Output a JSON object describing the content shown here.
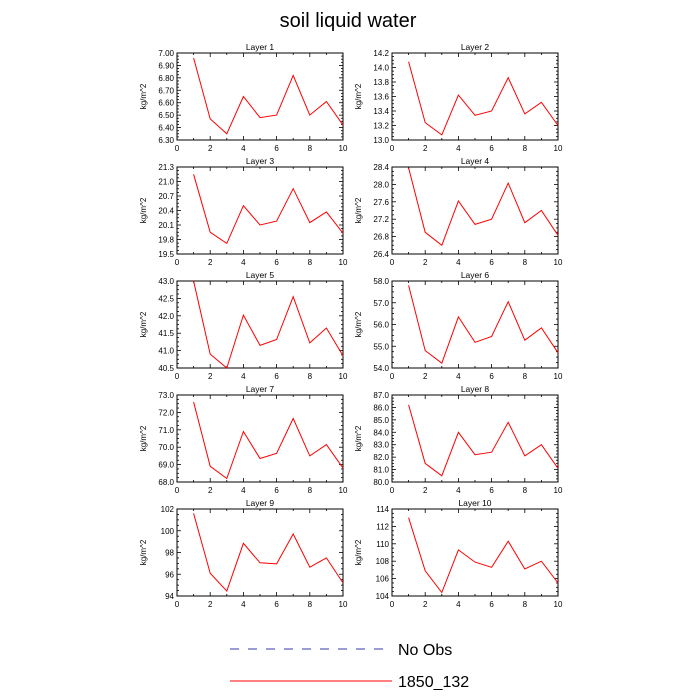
{
  "chart_data": {
    "type": "line",
    "title": "soil liquid water",
    "panels": [
      {
        "title": "Layer 1",
        "ylabel": "kg/m^2",
        "xlim": [
          0,
          10
        ],
        "ylim": [
          6.3,
          7.0
        ],
        "yticks": [
          "6.30",
          "6.40",
          "6.50",
          "6.60",
          "6.70",
          "6.80",
          "6.90",
          "7.00"
        ],
        "x": [
          1,
          2,
          3,
          4,
          5,
          6,
          7,
          8,
          9,
          10
        ],
        "values": [
          6.96,
          6.47,
          6.35,
          6.65,
          6.48,
          6.5,
          6.82,
          6.5,
          6.61,
          6.42
        ]
      },
      {
        "title": "Layer 2",
        "ylabel": "kg/m^2",
        "xlim": [
          0,
          10
        ],
        "ylim": [
          13.0,
          14.2
        ],
        "yticks": [
          "13.0",
          "13.2",
          "13.4",
          "13.6",
          "13.8",
          "14.0",
          "14.2"
        ],
        "x": [
          1,
          2,
          3,
          4,
          5,
          6,
          7,
          8,
          9,
          10
        ],
        "values": [
          14.08,
          13.24,
          13.07,
          13.62,
          13.34,
          13.4,
          13.86,
          13.36,
          13.52,
          13.2
        ]
      },
      {
        "title": "Layer 3",
        "ylabel": "kg/m^2",
        "xlim": [
          0,
          10
        ],
        "ylim": [
          19.5,
          21.3
        ],
        "yticks": [
          "19.5",
          "19.8",
          "20.1",
          "20.4",
          "20.7",
          "21.0",
          "21.3"
        ],
        "x": [
          1,
          2,
          3,
          4,
          5,
          6,
          7,
          8,
          9,
          10
        ],
        "values": [
          21.15,
          19.95,
          19.72,
          20.5,
          20.1,
          20.18,
          20.85,
          20.15,
          20.37,
          19.93
        ]
      },
      {
        "title": "Layer 4",
        "ylabel": "kg/m^2",
        "xlim": [
          0,
          10
        ],
        "ylim": [
          26.4,
          28.4
        ],
        "yticks": [
          "26.4",
          "26.8",
          "27.2",
          "27.6",
          "28.0",
          "28.4"
        ],
        "x": [
          1,
          2,
          3,
          4,
          5,
          6,
          7,
          8,
          9,
          10
        ],
        "values": [
          28.38,
          26.9,
          26.6,
          27.62,
          27.08,
          27.2,
          28.03,
          27.12,
          27.4,
          26.83
        ]
      },
      {
        "title": "Layer 5",
        "ylabel": "kg/m^2",
        "xlim": [
          0,
          10
        ],
        "ylim": [
          40.5,
          43.0
        ],
        "yticks": [
          "40.5",
          "41.0",
          "41.5",
          "42.0",
          "42.5",
          "43.0"
        ],
        "x": [
          1,
          2,
          3,
          4,
          5,
          6,
          7,
          8,
          9,
          10
        ],
        "values": [
          43.0,
          40.9,
          40.5,
          42.02,
          41.15,
          41.32,
          42.55,
          41.22,
          41.65,
          40.85
        ]
      },
      {
        "title": "Layer 6",
        "ylabel": "kg/m^2",
        "xlim": [
          0,
          10
        ],
        "ylim": [
          54.0,
          58.0
        ],
        "yticks": [
          "54.0",
          "55.0",
          "56.0",
          "57.0",
          "58.0"
        ],
        "x": [
          1,
          2,
          3,
          4,
          5,
          6,
          7,
          8,
          9,
          10
        ],
        "values": [
          57.8,
          54.8,
          54.22,
          56.35,
          55.18,
          55.45,
          57.05,
          55.28,
          55.85,
          54.7
        ]
      },
      {
        "title": "Layer 7",
        "ylabel": "kg/m^2",
        "xlim": [
          0,
          10
        ],
        "ylim": [
          68.0,
          73.0
        ],
        "yticks": [
          "68.0",
          "69.0",
          "70.0",
          "71.0",
          "72.0",
          "73.0"
        ],
        "x": [
          1,
          2,
          3,
          4,
          5,
          6,
          7,
          8,
          9,
          10
        ],
        "values": [
          72.6,
          68.9,
          68.2,
          70.9,
          69.35,
          69.65,
          71.65,
          69.5,
          70.15,
          68.8
        ]
      },
      {
        "title": "Layer 8",
        "ylabel": "kg/m^2",
        "xlim": [
          0,
          10
        ],
        "ylim": [
          80.0,
          87.0
        ],
        "yticks": [
          "80.0",
          "81.0",
          "82.0",
          "83.0",
          "84.0",
          "85.0",
          "86.0",
          "87.0"
        ],
        "x": [
          1,
          2,
          3,
          4,
          5,
          6,
          7,
          8,
          9,
          10
        ],
        "values": [
          86.2,
          81.5,
          80.5,
          84.0,
          82.2,
          82.4,
          84.8,
          82.1,
          83.0,
          81.1
        ]
      },
      {
        "title": "Layer 9",
        "ylabel": "kg/m^2",
        "xlim": [
          0,
          10
        ],
        "ylim": [
          94,
          102
        ],
        "yticks": [
          "94",
          "96",
          "98",
          "100",
          "102"
        ],
        "x": [
          1,
          2,
          3,
          4,
          5,
          6,
          7,
          8,
          9,
          10
        ],
        "values": [
          101.6,
          96.1,
          94.45,
          98.85,
          97.05,
          96.95,
          99.7,
          96.65,
          97.5,
          95.2
        ]
      },
      {
        "title": "Layer 10",
        "ylabel": "kg/m^2",
        "xlim": [
          0,
          10
        ],
        "ylim": [
          104,
          114
        ],
        "yticks": [
          "104",
          "106",
          "108",
          "110",
          "112",
          "114"
        ],
        "x": [
          1,
          2,
          3,
          4,
          5,
          6,
          7,
          8,
          9,
          10
        ],
        "values": [
          113.0,
          106.9,
          104.4,
          109.3,
          107.9,
          107.3,
          110.3,
          107.1,
          108.0,
          105.5
        ]
      }
    ],
    "xticks": [
      "0",
      "2",
      "4",
      "6",
      "8",
      "10"
    ],
    "legend": [
      {
        "label": "No Obs",
        "color": "#3a3aa8",
        "style": "dashed"
      },
      {
        "label": "1850_132",
        "color": "#ff0000",
        "style": "solid"
      }
    ]
  }
}
